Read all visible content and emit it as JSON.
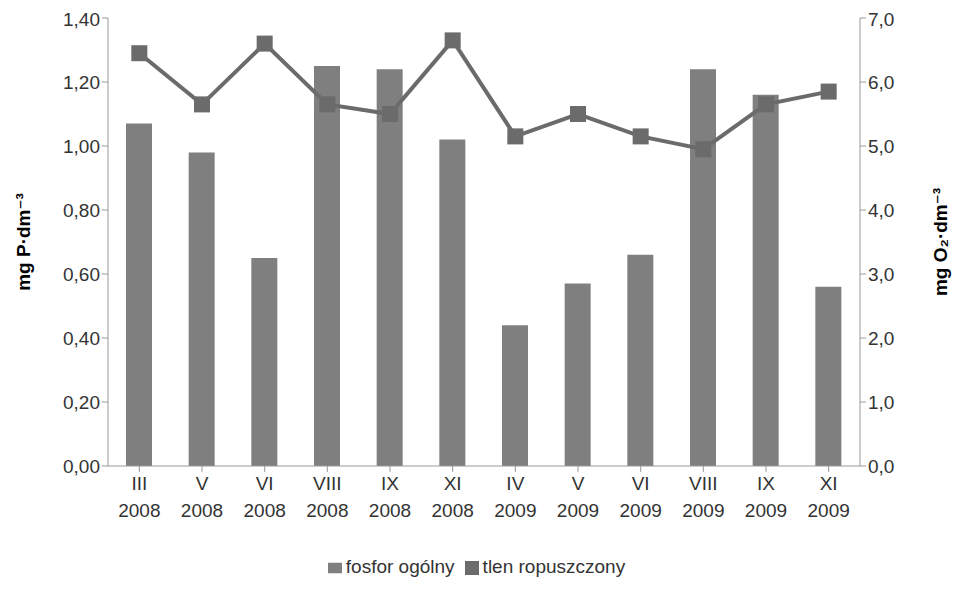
{
  "chart_data": {
    "type": "bar",
    "categories": [
      "III 2008",
      "V 2008",
      "VI 2008",
      "VIII 2008",
      "IX 2008",
      "XI 2008",
      "IV 2009",
      "V 2009",
      "VI 2009",
      "VIII 2009",
      "IX 2009",
      "XI 2009"
    ],
    "y_label": "mg P·dm⁻³",
    "y2_label": "mg O₂·dm⁻³",
    "ylim": [
      0,
      1.4
    ],
    "yticks": [
      {
        "value": 0,
        "label": "0,00"
      },
      {
        "value": 0.2,
        "label": "0,20"
      },
      {
        "value": 0.4,
        "label": "0,40"
      },
      {
        "value": 0.6,
        "label": "0,60"
      },
      {
        "value": 0.8,
        "label": "0,80"
      },
      {
        "value": 1,
        "label": "1,00"
      },
      {
        "value": 1.2,
        "label": "1,20"
      },
      {
        "value": 1.4,
        "label": "1,40"
      }
    ],
    "y2lim": [
      0,
      7
    ],
    "y2ticks": [
      {
        "value": 0,
        "label": "0,0"
      },
      {
        "value": 1,
        "label": "1,0"
      },
      {
        "value": 2,
        "label": "2,0"
      },
      {
        "value": 3,
        "label": "3,0"
      },
      {
        "value": 4,
        "label": "4,0"
      },
      {
        "value": 5,
        "label": "5,0"
      },
      {
        "value": 6,
        "label": "6,0"
      },
      {
        "value": 7,
        "label": "7,0"
      }
    ],
    "grid": false,
    "legend": "bottom",
    "series": [
      {
        "name": "fosfor ogólny",
        "type": "bar",
        "color": "#7f7f7f",
        "values": [
          1.07,
          0.98,
          0.65,
          1.25,
          1.24,
          1.02,
          0.44,
          0.57,
          0.66,
          1.24,
          1.16,
          0.56
        ]
      },
      {
        "name": "tlen ropuszczony",
        "type": "line",
        "axis": "y2",
        "color": "#6b6b6b",
        "marker": "square",
        "values": [
          6.45,
          5.65,
          6.6,
          5.65,
          5.5,
          6.65,
          5.15,
          5.5,
          5.15,
          4.95,
          5.65,
          5.85
        ]
      }
    ]
  }
}
